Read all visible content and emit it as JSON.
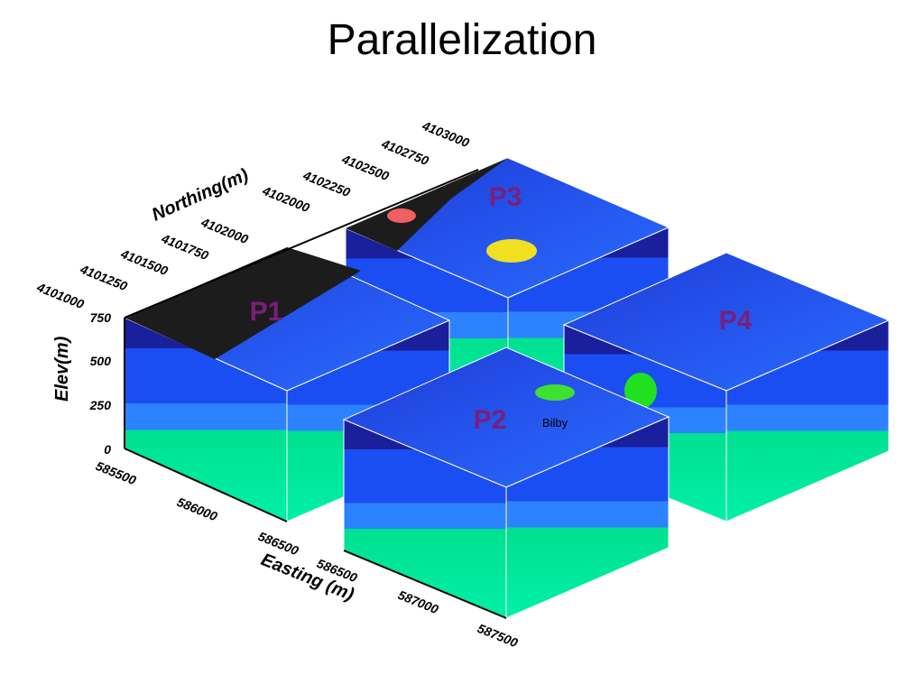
{
  "title": "Parallelization",
  "blocks": [
    {
      "label": "P1"
    },
    {
      "label": "P2"
    },
    {
      "label": "P3"
    },
    {
      "label": "P4"
    }
  ],
  "axes": {
    "northing": {
      "label": "Northing(m)",
      "ticks": [
        "4101000",
        "4101250",
        "4101500",
        "4101750",
        "4102000",
        "4102000",
        "4102250",
        "4102500",
        "4102750",
        "4103000"
      ]
    },
    "elevation": {
      "label": "Elev(m)",
      "ticks": [
        "0",
        "250",
        "500",
        "750"
      ]
    },
    "easting": {
      "label": "Easting (m)",
      "ticks": [
        "585500",
        "586000",
        "586500",
        "586500",
        "587000",
        "587500"
      ]
    }
  },
  "annotations": {
    "well": "Bilby"
  }
}
